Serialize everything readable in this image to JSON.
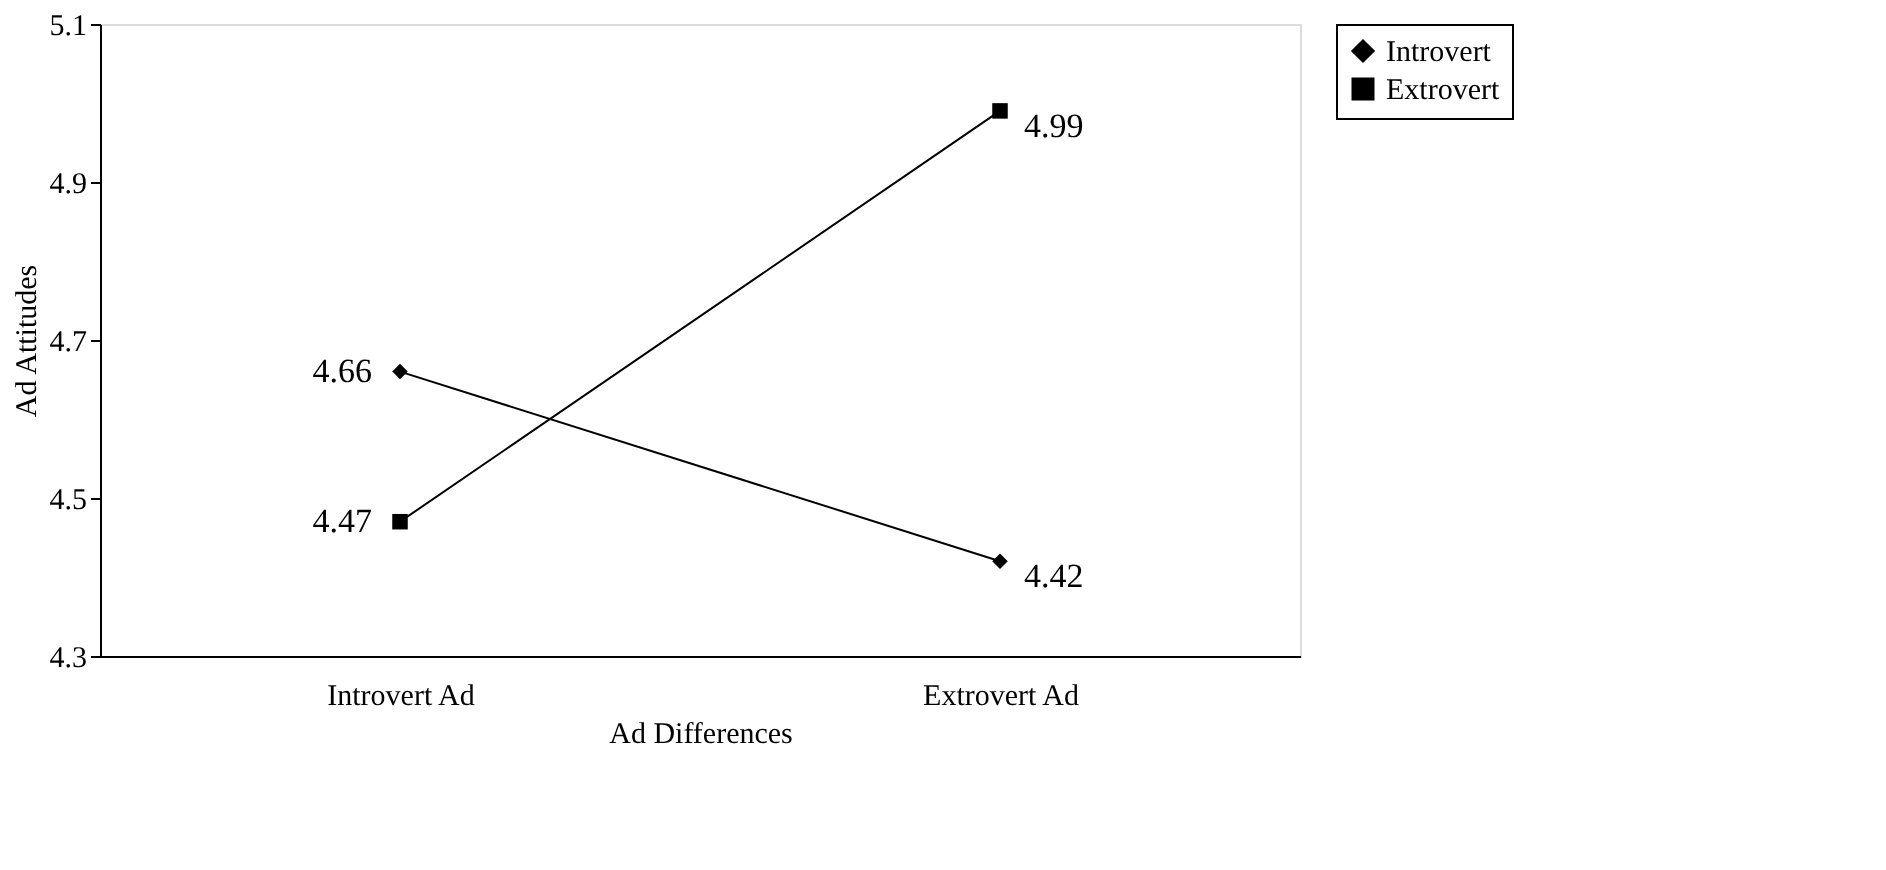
{
  "chart_data": {
    "type": "line",
    "xlabel": "Ad Differences",
    "ylabel": "Ad Attitudes",
    "categories": [
      "Introvert Ad",
      "Extrovert Ad"
    ],
    "series": [
      {
        "name": "Introvert",
        "color": "#000000",
        "marker": "diamond",
        "values": [
          4.66,
          4.42
        ]
      },
      {
        "name": "Extrovert",
        "color": "#000000",
        "marker": "square",
        "values": [
          4.47,
          4.99
        ]
      }
    ],
    "ylim": [
      4.3,
      5.1
    ],
    "yticks": [
      4.3,
      4.5,
      4.7,
      4.9,
      5.1
    ],
    "grid": false,
    "legend": "right",
    "data_labels": true,
    "line_style": "solid"
  }
}
